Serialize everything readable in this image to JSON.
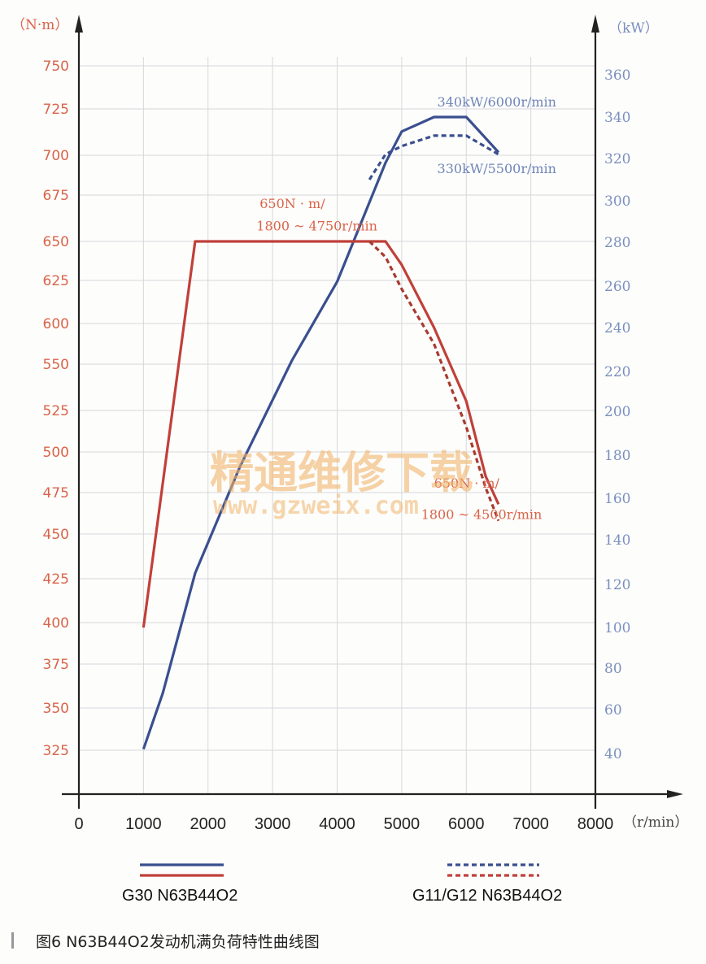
{
  "chart_data": {
    "type": "line",
    "x_axis": {
      "unit": "（r/min）",
      "ticks": [
        "0",
        "1000",
        "2000",
        "3000",
        "4000",
        "5000",
        "6000",
        "7000",
        "8000"
      ],
      "range": [
        0,
        8000
      ]
    },
    "y_left": {
      "unit": "（N·m）",
      "ticks": [
        "750",
        "725",
        "700",
        "675",
        "650",
        "625",
        "600",
        "550",
        "525",
        "500",
        "475",
        "450",
        "425",
        "400",
        "375",
        "350",
        "325"
      ]
    },
    "y_right": {
      "unit": "（kW）",
      "ticks": [
        "360",
        "340",
        "320",
        "300",
        "280",
        "260",
        "240",
        "220",
        "200",
        "180",
        "160",
        "140",
        "120",
        "100",
        "80",
        "60",
        "40"
      ]
    },
    "grid": true,
    "series": [
      {
        "name": "G30 N63B44O2",
        "quantity": "power",
        "axis": "right",
        "color": "#3a4f8f",
        "dash": false,
        "x": [
          1000,
          1300,
          1800,
          2500,
          3300,
          4000,
          4750,
          5000,
          5500,
          6000,
          6500
        ],
        "y": [
          42,
          68,
          125,
          175,
          225,
          262,
          318,
          333,
          340,
          340,
          323
        ]
      },
      {
        "name": "G30 N63B44O2",
        "quantity": "torque",
        "axis": "left",
        "color": "#c0403a",
        "dash": false,
        "x": [
          1000,
          1800,
          4750,
          5000,
          5500,
          6000,
          6300,
          6500
        ],
        "y": [
          397,
          650,
          650,
          635,
          595,
          530,
          485,
          468
        ]
      },
      {
        "name": "G11/G12 N63B44O2",
        "quantity": "power",
        "axis": "right",
        "color": "#3a4f8f",
        "dash": true,
        "x": [
          4500,
          4750,
          5000,
          5500,
          6000,
          6500
        ],
        "y": [
          310,
          322,
          326,
          331,
          331,
          322
        ]
      },
      {
        "name": "G11/G12 N63B44O2",
        "quantity": "torque",
        "axis": "left",
        "color": "#a83a30",
        "dash": true,
        "x": [
          4500,
          4750,
          5000,
          5500,
          6000,
          6300,
          6500
        ],
        "y": [
          650,
          640,
          620,
          575,
          515,
          478,
          458
        ]
      }
    ],
    "annotations": [
      {
        "text": "340kW/6000r/min",
        "x": 5550,
        "y": 345,
        "axis": "right",
        "color": "#6f84b8"
      },
      {
        "text": "330kW/5500r/min",
        "x": 5550,
        "y": 313,
        "axis": "right",
        "color": "#6f84b8"
      },
      {
        "text": "650N · m/",
        "x": 2800,
        "y": 668,
        "axis": "left",
        "color": "#d9644a"
      },
      {
        "text": "1800 ~ 4750r/min",
        "x": 2750,
        "y": 656,
        "axis": "left",
        "color": "#d9644a"
      },
      {
        "text": "650N · m/",
        "x": 5500,
        "y": 478,
        "axis": "left",
        "color": "#d9644a"
      },
      {
        "text": "1800 ~ 4500r/min",
        "x": 5300,
        "y": 459,
        "axis": "left",
        "color": "#d9644a"
      }
    ],
    "legend": [
      {
        "label": "G30 N63B44O2",
        "dash": false
      },
      {
        "label": "G11/G12 N63B44O2",
        "dash": true
      }
    ],
    "legend_position": "bottom"
  },
  "caption": "图6   N63B44O2发动机满负荷特性曲线图",
  "watermark": {
    "text": "精通维修下载",
    "url": "www.gzweix.com"
  }
}
